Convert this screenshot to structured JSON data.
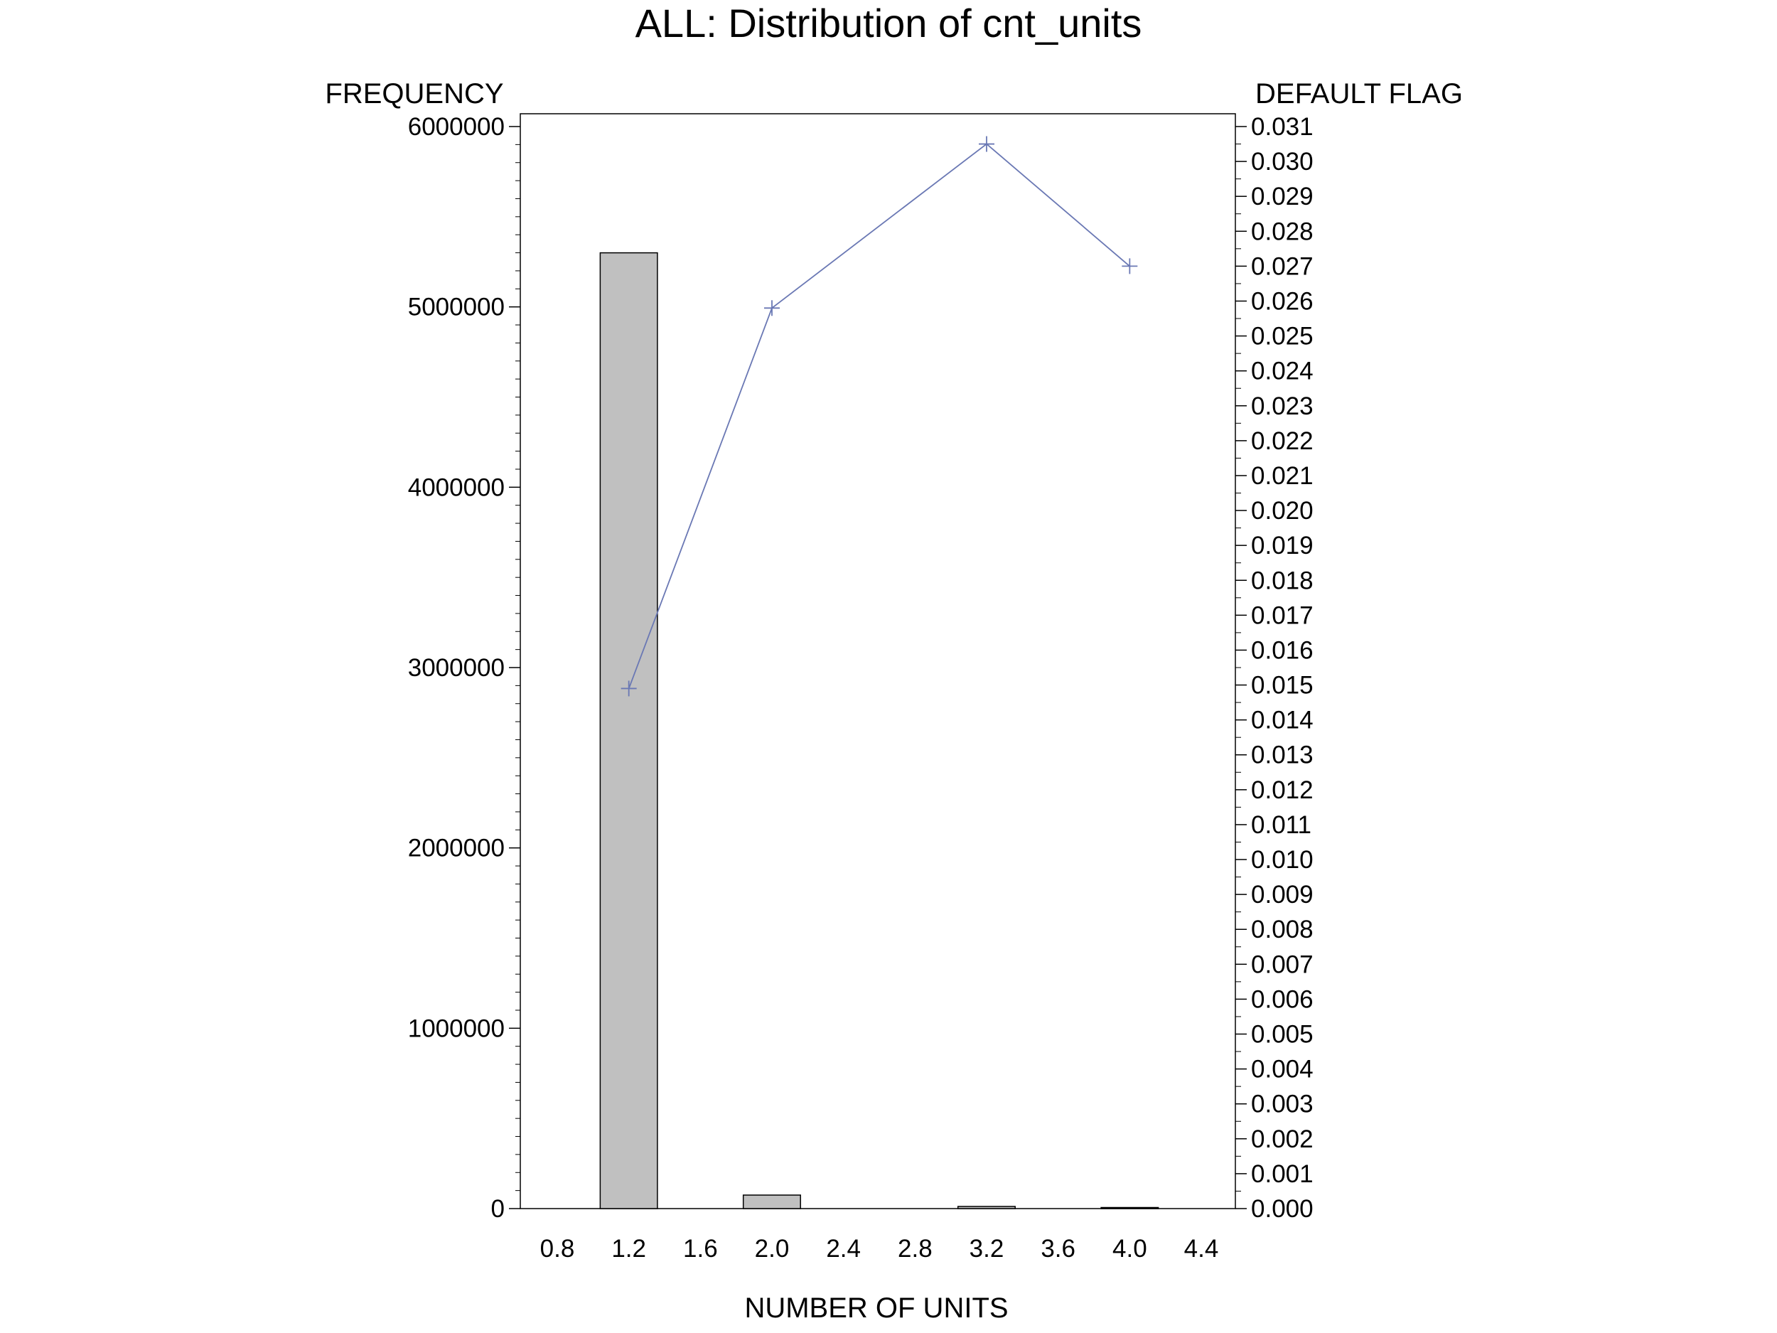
{
  "chart_data": {
    "type": "bar",
    "title": "ALL: Distribution of cnt_units",
    "xlabel": "NUMBER OF UNITS",
    "ylabel_left": "FREQUENCY",
    "ylabel_right": "DEFAULT FLAG",
    "xlim": [
      0.8,
      4.4
    ],
    "x_ticks": [
      "0.8",
      "1.2",
      "1.6",
      "2.0",
      "2.4",
      "2.8",
      "3.2",
      "3.6",
      "4.0",
      "4.4"
    ],
    "ylim_left": [
      0,
      6000000
    ],
    "y_ticks_left": [
      "0",
      "1000000",
      "2000000",
      "3000000",
      "4000000",
      "5000000",
      "6000000"
    ],
    "ylim_right": [
      0,
      0.031
    ],
    "y_ticks_right": [
      "0.000",
      "0.001",
      "0.002",
      "0.003",
      "0.004",
      "0.005",
      "0.006",
      "0.007",
      "0.008",
      "0.009",
      "0.010",
      "0.011",
      "0.012",
      "0.013",
      "0.014",
      "0.015",
      "0.016",
      "0.017",
      "0.018",
      "0.019",
      "0.020",
      "0.021",
      "0.022",
      "0.023",
      "0.024",
      "0.025",
      "0.026",
      "0.027",
      "0.028",
      "0.029",
      "0.030",
      "0.031"
    ],
    "grid": false,
    "bars": {
      "x": [
        1.2,
        2.0,
        3.2,
        4.0
      ],
      "values": [
        5300000,
        75000,
        12000,
        6000
      ],
      "width": 0.32,
      "color": "#c0c0c0",
      "edge_color": "#000000"
    },
    "line": {
      "x": [
        1.2,
        2.0,
        3.2,
        4.0
      ],
      "values": [
        0.0149,
        0.0258,
        0.0305,
        0.027
      ],
      "color": "#6a78b4",
      "marker": "plus"
    }
  }
}
